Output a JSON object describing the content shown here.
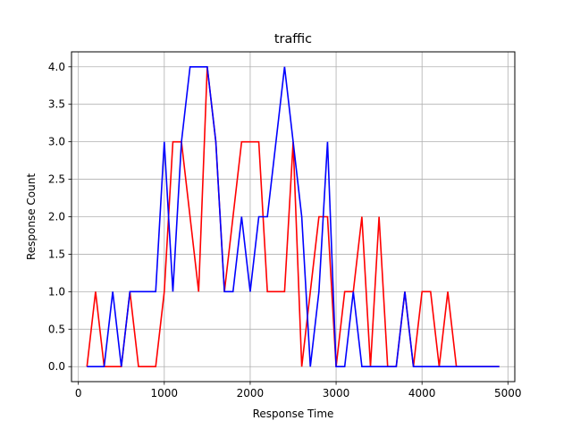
{
  "chart_data": {
    "type": "line",
    "title": "traffic",
    "xlabel": "Response Time",
    "ylabel": "Response Count",
    "xlim": [
      -80,
      5080
    ],
    "ylim": [
      -0.2,
      4.2
    ],
    "xticks": [
      0,
      1000,
      2000,
      3000,
      4000,
      5000
    ],
    "yticks": [
      0.0,
      0.5,
      1.0,
      1.5,
      2.0,
      2.5,
      3.0,
      3.5,
      4.0
    ],
    "xtick_labels": [
      "0",
      "1000",
      "2000",
      "3000",
      "4000",
      "5000"
    ],
    "ytick_labels": [
      "0.0",
      "0.5",
      "1.0",
      "1.5",
      "2.0",
      "2.5",
      "3.0",
      "3.5",
      "4.0"
    ],
    "grid": true,
    "x": [
      100,
      200,
      300,
      400,
      500,
      600,
      700,
      800,
      900,
      1000,
      1100,
      1200,
      1300,
      1400,
      1500,
      1600,
      1700,
      1800,
      1900,
      2000,
      2100,
      2200,
      2300,
      2400,
      2500,
      2600,
      2700,
      2800,
      2900,
      3000,
      3100,
      3200,
      3300,
      3400,
      3500,
      3600,
      3700,
      3800,
      3900,
      4000,
      4100,
      4200,
      4300,
      4400,
      4500,
      4600,
      4700,
      4800,
      4900
    ],
    "series": [
      {
        "color": "#ff0000",
        "values": [
          0,
          1,
          0,
          0,
          0,
          1,
          0,
          0,
          0,
          1,
          3,
          3,
          2,
          1,
          4,
          3,
          1,
          2,
          3,
          3,
          3,
          1,
          1,
          1,
          3,
          0,
          1,
          2,
          2,
          0,
          1,
          1,
          2,
          0,
          2,
          0,
          0,
          1,
          0,
          1,
          1,
          0,
          1,
          0,
          0,
          0,
          0,
          0,
          0
        ]
      },
      {
        "color": "#0000ff",
        "values": [
          0,
          0,
          0,
          1,
          0,
          1,
          1,
          1,
          1,
          3,
          1,
          3,
          4,
          4,
          4,
          3,
          1,
          1,
          2,
          1,
          2,
          2,
          3,
          4,
          3,
          2,
          0,
          1,
          3,
          0,
          0,
          1,
          0,
          0,
          0,
          0,
          0,
          1,
          0,
          0,
          0,
          0,
          0,
          0,
          0,
          0,
          0,
          0,
          0
        ]
      }
    ]
  }
}
